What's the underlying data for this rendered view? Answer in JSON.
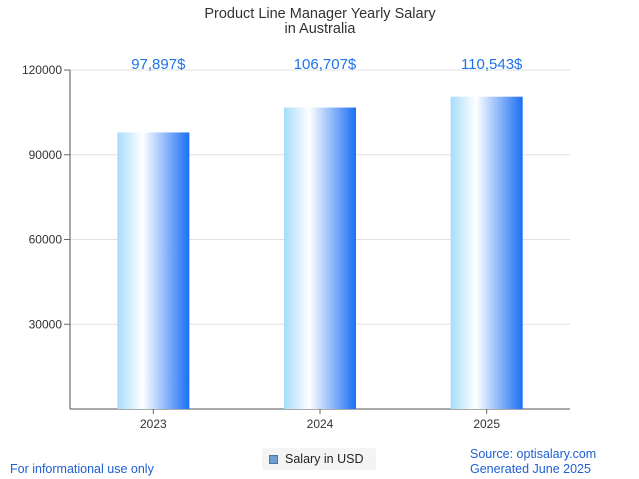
{
  "colors": {
    "bar_edge": "#a6dcfb",
    "bar_mid": "#ffffff",
    "bar_right": "#1a6ff5",
    "label": "#1e73e8",
    "legend_swatch": "#6d9fd4"
  },
  "chart_data": {
    "type": "bar",
    "title": [
      "Product Line Manager Yearly Salary",
      "in Australia"
    ],
    "categories": [
      "2023",
      "2024",
      "2025"
    ],
    "series": [
      {
        "name": "Salary in USD",
        "values": [
          97897,
          106707,
          110543
        ]
      }
    ],
    "data_labels": [
      "97,897$",
      "106,707$",
      "110,543$"
    ],
    "yticks": [
      30000,
      60000,
      90000,
      120000
    ],
    "ylim": [
      0,
      120000
    ],
    "xlabel": "",
    "ylabel": "",
    "grid": true,
    "legend_position": "bottom"
  },
  "footer": {
    "disclaimer": "For informational use only",
    "source": "Source: optisalary.com",
    "generated": "Generated June 2025"
  }
}
